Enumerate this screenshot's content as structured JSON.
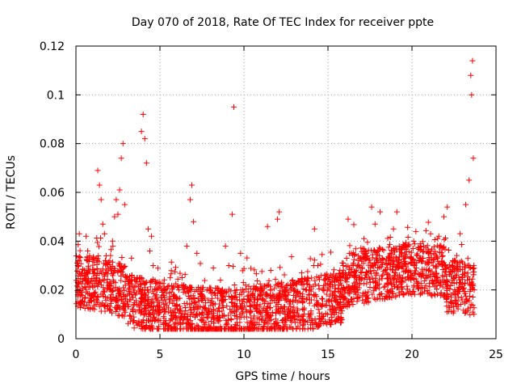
{
  "chart_data": {
    "type": "scatter",
    "title": "Day 070 of 2018, Rate Of TEC Index for receiver ppte",
    "xlabel": "GPS time / hours",
    "ylabel": "ROTI / TECUs",
    "xlim": [
      0,
      25
    ],
    "ylim": [
      0,
      0.12
    ],
    "xticks": [
      "0",
      "5",
      "10",
      "15",
      "20",
      "25"
    ],
    "yticks": [
      "0",
      "0.02",
      "0.04",
      "0.06",
      "0.08",
      "0.1",
      "0.12"
    ],
    "grid": true,
    "legend": "none",
    "marker": "+",
    "series": [
      {
        "name": "ROTI",
        "color": "#ff0000",
        "points": [
          [
            0.1,
            0.03
          ],
          [
            0.2,
            0.043
          ],
          [
            0.3,
            0.015
          ],
          [
            0.5,
            0.028
          ],
          [
            0.7,
            0.036
          ],
          [
            0.9,
            0.018
          ],
          [
            1.1,
            0.012
          ],
          [
            1.2,
            0.025
          ],
          [
            1.3,
            0.069
          ],
          [
            1.4,
            0.063
          ],
          [
            1.5,
            0.057
          ],
          [
            1.6,
            0.047
          ],
          [
            1.7,
            0.043
          ],
          [
            1.8,
            0.034
          ],
          [
            2.0,
            0.022
          ],
          [
            2.1,
            0.018
          ],
          [
            2.2,
            0.038
          ],
          [
            2.3,
            0.05
          ],
          [
            2.4,
            0.057
          ],
          [
            2.5,
            0.051
          ],
          [
            2.6,
            0.061
          ],
          [
            2.7,
            0.074
          ],
          [
            2.8,
            0.08
          ],
          [
            2.9,
            0.055
          ],
          [
            3.0,
            0.025
          ],
          [
            3.2,
            0.016
          ],
          [
            3.4,
            0.012
          ],
          [
            3.6,
            0.014
          ],
          [
            3.8,
            0.025
          ],
          [
            3.9,
            0.085
          ],
          [
            4.0,
            0.092
          ],
          [
            4.1,
            0.082
          ],
          [
            4.2,
            0.072
          ],
          [
            4.3,
            0.045
          ],
          [
            4.4,
            0.036
          ],
          [
            4.5,
            0.042
          ],
          [
            4.6,
            0.03
          ],
          [
            4.8,
            0.018
          ],
          [
            5.0,
            0.012
          ],
          [
            5.3,
            0.02
          ],
          [
            5.6,
            0.016
          ],
          [
            6.0,
            0.014
          ],
          [
            6.3,
            0.022
          ],
          [
            6.6,
            0.038
          ],
          [
            6.8,
            0.057
          ],
          [
            6.9,
            0.063
          ],
          [
            7.0,
            0.048
          ],
          [
            7.2,
            0.035
          ],
          [
            7.5,
            0.018
          ],
          [
            7.8,
            0.02
          ],
          [
            8.2,
            0.012
          ],
          [
            8.6,
            0.024
          ],
          [
            8.9,
            0.038
          ],
          [
            9.1,
            0.03
          ],
          [
            9.3,
            0.051
          ],
          [
            9.4,
            0.095
          ],
          [
            9.6,
            0.016
          ],
          [
            9.8,
            0.035
          ],
          [
            10.1,
            0.022
          ],
          [
            10.5,
            0.018
          ],
          [
            10.8,
            0.014
          ],
          [
            11.1,
            0.02
          ],
          [
            11.4,
            0.046
          ],
          [
            11.6,
            0.028
          ],
          [
            12.0,
            0.049
          ],
          [
            12.1,
            0.052
          ],
          [
            12.3,
            0.018
          ],
          [
            12.6,
            0.016
          ],
          [
            13.0,
            0.02
          ],
          [
            13.5,
            0.015
          ],
          [
            13.9,
            0.022
          ],
          [
            14.2,
            0.045
          ],
          [
            14.4,
            0.03
          ],
          [
            14.7,
            0.02
          ],
          [
            15.1,
            0.016
          ],
          [
            15.5,
            0.024
          ],
          [
            15.9,
            0.03
          ],
          [
            16.2,
            0.049
          ],
          [
            16.5,
            0.03
          ],
          [
            16.9,
            0.025
          ],
          [
            17.3,
            0.035
          ],
          [
            17.6,
            0.054
          ],
          [
            17.8,
            0.047
          ],
          [
            18.1,
            0.052
          ],
          [
            18.4,
            0.028
          ],
          [
            18.7,
            0.035
          ],
          [
            18.9,
            0.045
          ],
          [
            19.1,
            0.052
          ],
          [
            19.4,
            0.035
          ],
          [
            19.7,
            0.028
          ],
          [
            20.1,
            0.04
          ],
          [
            20.4,
            0.032
          ],
          [
            20.7,
            0.038
          ],
          [
            21.0,
            0.028
          ],
          [
            21.3,
            0.035
          ],
          [
            21.6,
            0.042
          ],
          [
            21.9,
            0.05
          ],
          [
            22.1,
            0.054
          ],
          [
            22.4,
            0.03
          ],
          [
            22.7,
            0.02
          ],
          [
            23.0,
            0.025
          ],
          [
            23.2,
            0.055
          ],
          [
            23.4,
            0.065
          ],
          [
            23.5,
            0.108
          ],
          [
            23.55,
            0.1
          ],
          [
            23.6,
            0.114
          ],
          [
            23.65,
            0.074
          ],
          [
            23.7,
            0.02
          ]
        ],
        "note": "Dense band of ROTI values between approximately 0.008 and 0.030 TECUs across 0 to 23.7 hours"
      }
    ]
  }
}
